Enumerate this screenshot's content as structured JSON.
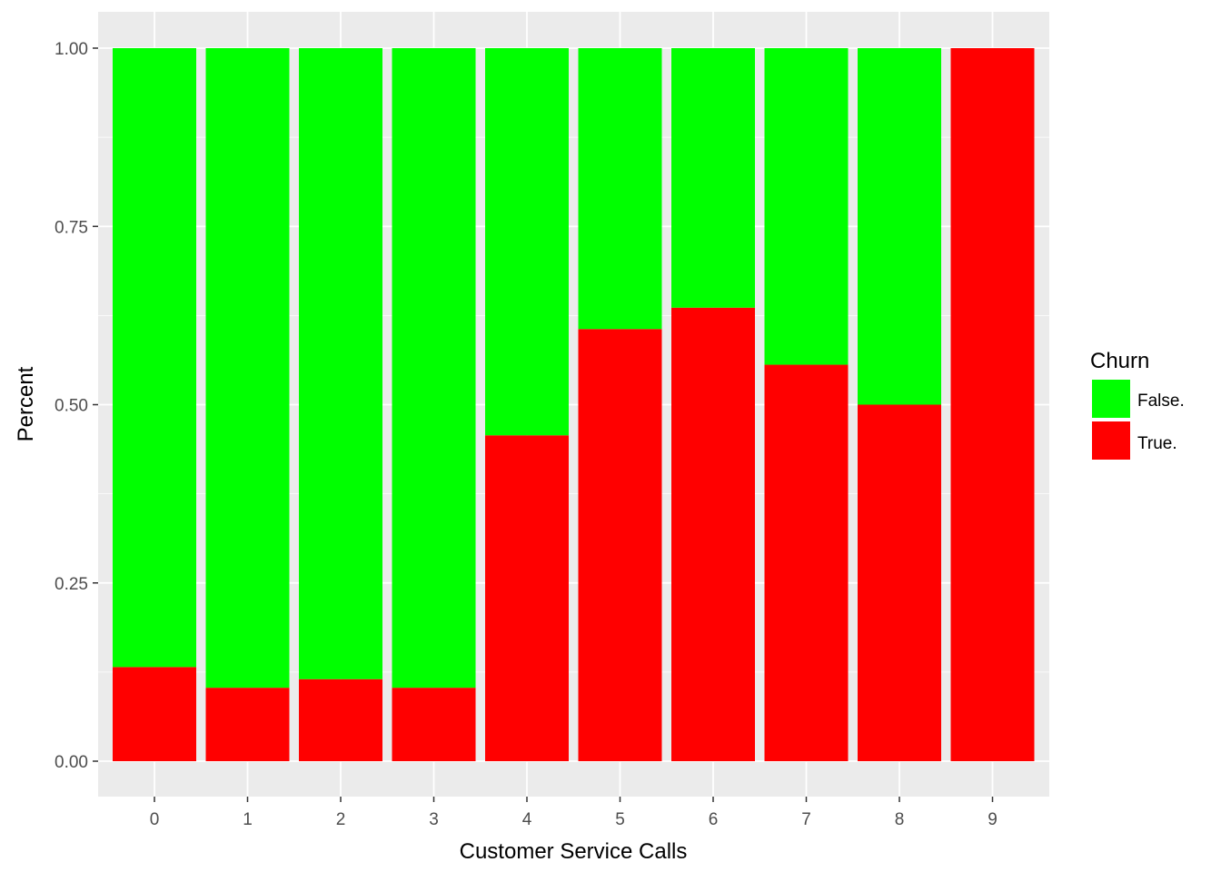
{
  "chart_data": {
    "type": "bar",
    "stacked": true,
    "xlabel": "Customer Service Calls",
    "ylabel": "Percent",
    "categories": [
      "0",
      "1",
      "2",
      "3",
      "4",
      "5",
      "6",
      "7",
      "8",
      "9"
    ],
    "ylim": [
      0,
      1
    ],
    "yticks": [
      "0.00",
      "0.25",
      "0.50",
      "0.75",
      "1.00"
    ],
    "grid": true,
    "legend": {
      "title": "Churn",
      "position": "right",
      "items": [
        {
          "label": "False.",
          "color": "#00ff00"
        },
        {
          "label": "True.",
          "color": "#ff0000"
        }
      ]
    },
    "series": [
      {
        "name": "True.",
        "color": "#ff0000",
        "values": [
          0.132,
          0.103,
          0.115,
          0.103,
          0.457,
          0.606,
          0.636,
          0.556,
          0.5,
          1.0
        ]
      },
      {
        "name": "False.",
        "color": "#00ff00",
        "values": [
          0.868,
          0.897,
          0.885,
          0.897,
          0.543,
          0.394,
          0.364,
          0.444,
          0.5,
          0.0
        ]
      }
    ]
  }
}
